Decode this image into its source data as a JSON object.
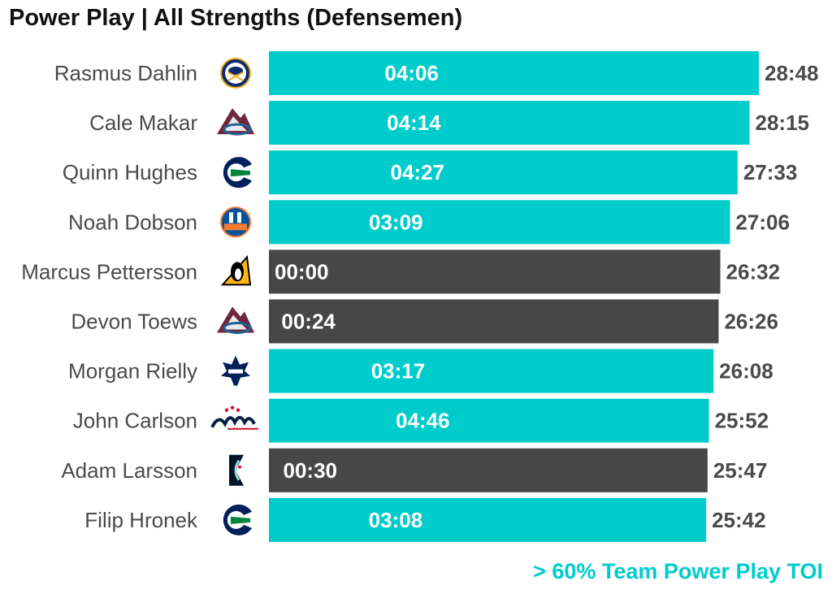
{
  "title": "Power Play | All Strengths (Defensemen)",
  "footnote": "> 60% Team Power Play TOI",
  "colors": {
    "highlight": "#00CCCC",
    "other": "#474747",
    "label": "#4a4a4a"
  },
  "chart_data": {
    "type": "bar",
    "orientation": "horizontal",
    "title": "Power Play | All Strengths (Defensemen)",
    "xlabel": "",
    "ylabel": "",
    "units": "minutes:seconds",
    "grid": false,
    "rows": [
      {
        "player": "Rasmus Dahlin",
        "team_icon": "buffalo-sabres-logo",
        "total": "28:48",
        "pp": "04:06",
        "highlight": true
      },
      {
        "player": "Cale Makar",
        "team_icon": "colorado-avalanche-logo",
        "total": "28:15",
        "pp": "04:14",
        "highlight": true
      },
      {
        "player": "Quinn Hughes",
        "team_icon": "vancouver-canucks-logo",
        "total": "27:33",
        "pp": "04:27",
        "highlight": true
      },
      {
        "player": "Noah Dobson",
        "team_icon": "new-york-islanders-logo",
        "total": "27:06",
        "pp": "03:09",
        "highlight": true
      },
      {
        "player": "Marcus Pettersson",
        "team_icon": "pittsburgh-penguins-logo",
        "total": "26:32",
        "pp": "00:00",
        "highlight": false
      },
      {
        "player": "Devon Toews",
        "team_icon": "colorado-avalanche-logo",
        "total": "26:26",
        "pp": "00:24",
        "highlight": false
      },
      {
        "player": "Morgan Rielly",
        "team_icon": "toronto-maple-leafs-logo",
        "total": "26:08",
        "pp": "03:17",
        "highlight": true
      },
      {
        "player": "John Carlson",
        "team_icon": "washington-capitals-logo",
        "total": "25:52",
        "pp": "04:46",
        "highlight": true
      },
      {
        "player": "Adam Larsson",
        "team_icon": "seattle-kraken-logo",
        "total": "25:47",
        "pp": "00:30",
        "highlight": false
      },
      {
        "player": "Filip Hronek",
        "team_icon": "vancouver-canucks-logo",
        "total": "25:42",
        "pp": "03:08",
        "highlight": true
      }
    ]
  }
}
